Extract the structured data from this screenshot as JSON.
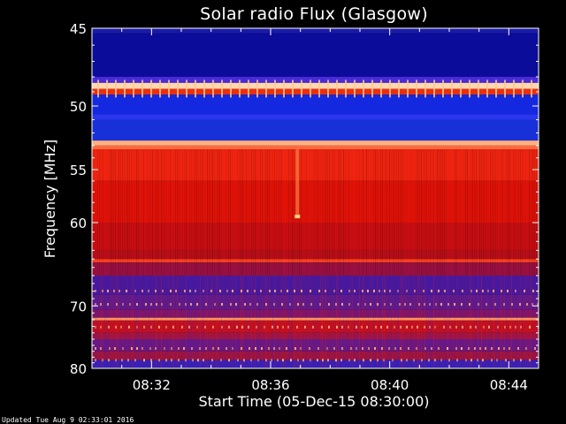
{
  "chart_data": {
    "type": "heatmap",
    "title": "Solar radio Flux (Glasgow)",
    "xlabel": "Start Time (05-Dec-15 08:30:00)",
    "ylabel": "Frequency [MHz]",
    "x_ticks": [
      {
        "label": "08:32",
        "minutes": 2
      },
      {
        "label": "08:36",
        "minutes": 6
      },
      {
        "label": "08:40",
        "minutes": 10
      },
      {
        "label": "08:44",
        "minutes": 14
      }
    ],
    "xlim_minutes": [
      0,
      15
    ],
    "y_ticks": [
      45,
      50,
      55,
      60,
      70,
      80
    ],
    "ylim": [
      45,
      80
    ],
    "y_scale": "reciprocal",
    "bands": [
      {
        "f0": 45.0,
        "f1": 45.3,
        "color": "#1a1aa8"
      },
      {
        "f0": 45.3,
        "f1": 48.0,
        "color": "#0c0c9a"
      },
      {
        "f0": 48.0,
        "f1": 48.4,
        "color": "#4a2bd8"
      },
      {
        "f0": 48.4,
        "f1": 48.8,
        "color": "#ffd8b0"
      },
      {
        "f0": 48.8,
        "f1": 49.2,
        "color": "#e83010"
      },
      {
        "f0": 49.2,
        "f1": 50.6,
        "color": "#1428e0"
      },
      {
        "f0": 50.6,
        "f1": 51.0,
        "color": "#2a36f0"
      },
      {
        "f0": 51.0,
        "f1": 52.6,
        "color": "#1830d8"
      },
      {
        "f0": 52.6,
        "f1": 53.0,
        "color": "#ffb080"
      },
      {
        "f0": 53.0,
        "f1": 53.3,
        "color": "#ff6a40"
      },
      {
        "f0": 53.3,
        "f1": 56.0,
        "color": "#f02410"
      },
      {
        "f0": 56.0,
        "f1": 60.0,
        "color": "#e01208"
      },
      {
        "f0": 60.0,
        "f1": 63.0,
        "color": "#c80e12"
      },
      {
        "f0": 63.0,
        "f1": 64.0,
        "color": "#b80e18"
      },
      {
        "f0": 64.0,
        "f1": 64.4,
        "color": "#ff4020"
      },
      {
        "f0": 64.4,
        "f1": 66.0,
        "color": "#9a1040"
      },
      {
        "f0": 66.0,
        "f1": 68.5,
        "color": "#4a1898"
      },
      {
        "f0": 68.5,
        "f1": 70.5,
        "color": "#601a88"
      },
      {
        "f0": 70.5,
        "f1": 71.7,
        "color": "#801468"
      },
      {
        "f0": 71.7,
        "f1": 72.1,
        "color": "#ff9860"
      },
      {
        "f0": 72.1,
        "f1": 74.0,
        "color": "#c01020"
      },
      {
        "f0": 74.0,
        "f1": 75.0,
        "color": "#a01440"
      },
      {
        "f0": 75.0,
        "f1": 77.0,
        "color": "#6a1880"
      },
      {
        "f0": 77.0,
        "f1": 78.5,
        "color": "#9a1440"
      },
      {
        "f0": 78.5,
        "f1": 80.0,
        "color": "#3a20b0"
      }
    ],
    "colorscale": [
      "#000080",
      "#0000ff",
      "#8000c0",
      "#ff0000",
      "#ff8000",
      "#ffffc0"
    ]
  },
  "footer": "Updated Tue Aug  9 02:33:01 2016"
}
